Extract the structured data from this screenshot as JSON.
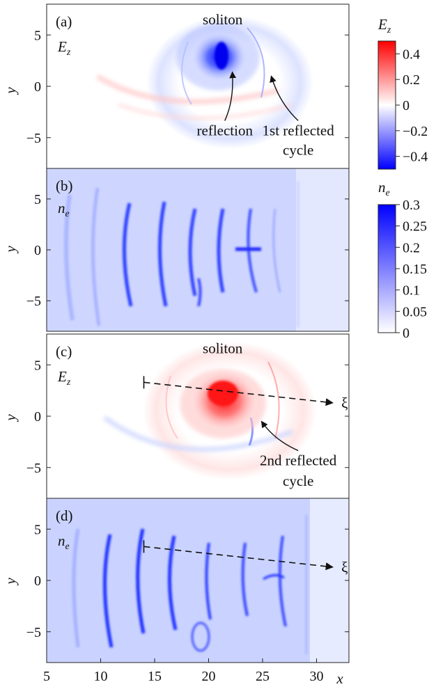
{
  "chart_data": [
    {
      "panel": "(a)",
      "field": "E",
      "field_sub": "z",
      "type": "heatmap",
      "xlim": [
        5,
        33
      ],
      "ylim": [
        -8,
        8
      ],
      "y_ticks": [
        5,
        0,
        -5
      ],
      "y_tick_labels": [
        "5",
        "0",
        "−5"
      ],
      "ylabel": "y",
      "annotations": [
        {
          "text": "soliton",
          "x": 21.3,
          "y": 6.5
        },
        {
          "text": "reflection",
          "x": 21.5,
          "y": -4.3,
          "arrow_to": [
            22.2,
            1.4
          ]
        },
        {
          "text": "1st reflected",
          "x": 28.3,
          "y": -4.3,
          "arrow_to": [
            25.8,
            1.0
          ]
        },
        {
          "text": "cycle",
          "x": 28.3,
          "y": -6.2
        }
      ],
      "colors": {
        "negative": "#0000ff",
        "zero": "#ffffff",
        "positive": "#ff0000"
      }
    },
    {
      "panel": "(b)",
      "field": "n",
      "field_sub": "e",
      "type": "heatmap",
      "xlim": [
        5,
        33
      ],
      "ylim": [
        -8,
        8
      ],
      "y_ticks": [
        5,
        0,
        -5
      ],
      "y_tick_labels": [
        "5",
        "0",
        "−5"
      ],
      "ylabel": "y",
      "colors": {
        "low": "#ffffff",
        "high": "#0000ff"
      }
    },
    {
      "panel": "(c)",
      "field": "E",
      "field_sub": "z",
      "type": "heatmap",
      "xlim": [
        5,
        33
      ],
      "ylim": [
        -8,
        8
      ],
      "y_ticks": [
        5,
        0,
        -5
      ],
      "y_tick_labels": [
        "5",
        "0",
        "−5"
      ],
      "ylabel": "y",
      "annotations": [
        {
          "text": "soliton",
          "x": 21.3,
          "y": 6.6
        },
        {
          "text": "2nd reflected",
          "x": 28.3,
          "y": -4.3,
          "arrow_to": [
            24.9,
            -0.5
          ]
        },
        {
          "text": "cycle",
          "x": 28.3,
          "y": -6.3
        },
        {
          "text": "ξ",
          "x": 32.6,
          "y": 1.3
        }
      ],
      "xi_line": {
        "from": [
          14.0,
          3.3
        ],
        "to": [
          31.5,
          1.3
        ]
      }
    },
    {
      "panel": "(d)",
      "field": "n",
      "field_sub": "e",
      "type": "heatmap",
      "xlim": [
        5,
        33
      ],
      "ylim": [
        -8,
        8
      ],
      "y_ticks": [
        5,
        0,
        -5
      ],
      "y_tick_labels": [
        "5",
        "0",
        "−5"
      ],
      "ylabel": "y",
      "x_ticks": [
        5,
        10,
        15,
        20,
        25,
        30
      ],
      "x_tick_labels": [
        "5",
        "10",
        "15",
        "20",
        "25",
        "30"
      ],
      "xlabel": "x",
      "annotations": [
        {
          "text": "ξ",
          "x": 32.6,
          "y": 1.3
        }
      ],
      "xi_line": {
        "from": [
          14.0,
          3.3
        ],
        "to": [
          31.5,
          1.3
        ]
      }
    }
  ],
  "colorbars": [
    {
      "label": "E",
      "label_sub": "z",
      "range": [
        -0.5,
        0.5
      ],
      "ticks": [
        0.4,
        0.2,
        0,
        -0.2,
        -0.4
      ],
      "tick_labels": [
        "0.4",
        "0.2",
        "0",
        "−0.2",
        "−0.4"
      ],
      "colors": [
        "#0000ff",
        "#ffffff",
        "#ff0000"
      ]
    },
    {
      "label": "n",
      "label_sub": "e",
      "range": [
        0,
        0.3
      ],
      "ticks": [
        0.3,
        0.25,
        0.2,
        0.15,
        0.1,
        0.05,
        0
      ],
      "tick_labels": [
        "0.3",
        "0.25",
        "0.2",
        "0.15",
        "0.1",
        "0.05",
        "0"
      ],
      "colors": [
        "#ffffff",
        "#0000ff"
      ]
    }
  ]
}
